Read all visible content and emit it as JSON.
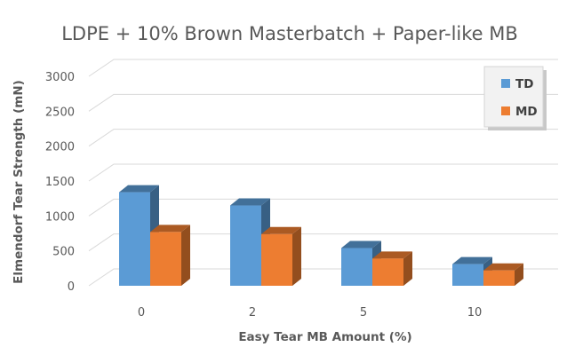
{
  "chart_data": {
    "type": "bar",
    "title": "LDPE + 10% Brown Masterbatch + Paper-like MB",
    "xlabel": "Easy Tear MB Amount (%)",
    "ylabel": "Elmendorf Tear Strength (mN)",
    "categories": [
      "0",
      "2",
      "5",
      "10"
    ],
    "series": [
      {
        "name": "TD",
        "values": [
          1340,
          1150,
          540,
          310
        ],
        "color": "#5b9bd5"
      },
      {
        "name": "MD",
        "values": [
          770,
          740,
          390,
          220
        ],
        "color": "#ed7d31"
      }
    ],
    "ylim": [
      0,
      3000
    ],
    "yticks": [
      0,
      500,
      1000,
      1500,
      2000,
      2500,
      3000
    ],
    "grid": true,
    "legend_position": "top-right",
    "style": "3d-clustered-column"
  }
}
